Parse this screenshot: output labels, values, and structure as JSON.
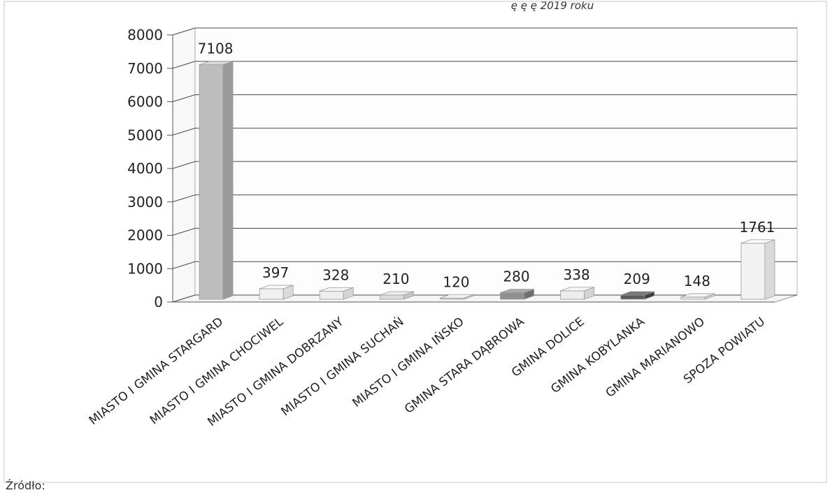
{
  "chart_data": {
    "type": "bar",
    "title": "",
    "xlabel": "",
    "ylabel": "",
    "ylim": [
      0,
      8000
    ],
    "yticks": [
      "0",
      "1000",
      "2000",
      "3000",
      "4000",
      "5000",
      "6000",
      "7000",
      "8000"
    ],
    "grid": true,
    "categories": [
      "MIASTO I GMINA STARGARD",
      "MIASTO I GMINA CHOCIWEL",
      "MIASTO I GMINA DOBRZANY",
      "MIASTO I GMINA SUCHAŃ",
      "MIASTO I GMINA IŃSKO",
      "GMINA STARA DĄBROWA",
      "GMINA DOLICE",
      "GMINA KOBYLANKA",
      "GMINA MARIANOWO",
      "SPOZA POWIATU"
    ],
    "values": [
      7108,
      397,
      328,
      210,
      120,
      280,
      338,
      209,
      148,
      1761
    ],
    "bar_colors": [
      "#bdbdbd",
      "#f1f1f1",
      "#eeeeee",
      "#dcdcdc",
      "#e8e8e8",
      "#8f8f8f",
      "#ececec",
      "#5a5a5a",
      "#ebebeb",
      "#f2f2f2"
    ],
    "bar_side_colors": [
      "#9a9a9a",
      "#dadada",
      "#d6d6d6",
      "#c4c4c4",
      "#cfcfcf",
      "#6f6f6f",
      "#d4d4d4",
      "#3d3d3d",
      "#d2d2d2",
      "#dadada"
    ],
    "bar_top_colors": [
      "#d6d6d6",
      "#fafafa",
      "#f7f7f7",
      "#ebebeb",
      "#f3f3f3",
      "#a8a8a8",
      "#f6f6f6",
      "#777777",
      "#f5f5f5",
      "#fbfbfb"
    ],
    "data_labels": [
      "7108",
      "397",
      "328",
      "210",
      "120",
      "280",
      "338",
      "209",
      "148",
      "1761"
    ]
  },
  "header_fragment": "ę ę ę 2019 roku",
  "footer_fragment": "Źródło:"
}
